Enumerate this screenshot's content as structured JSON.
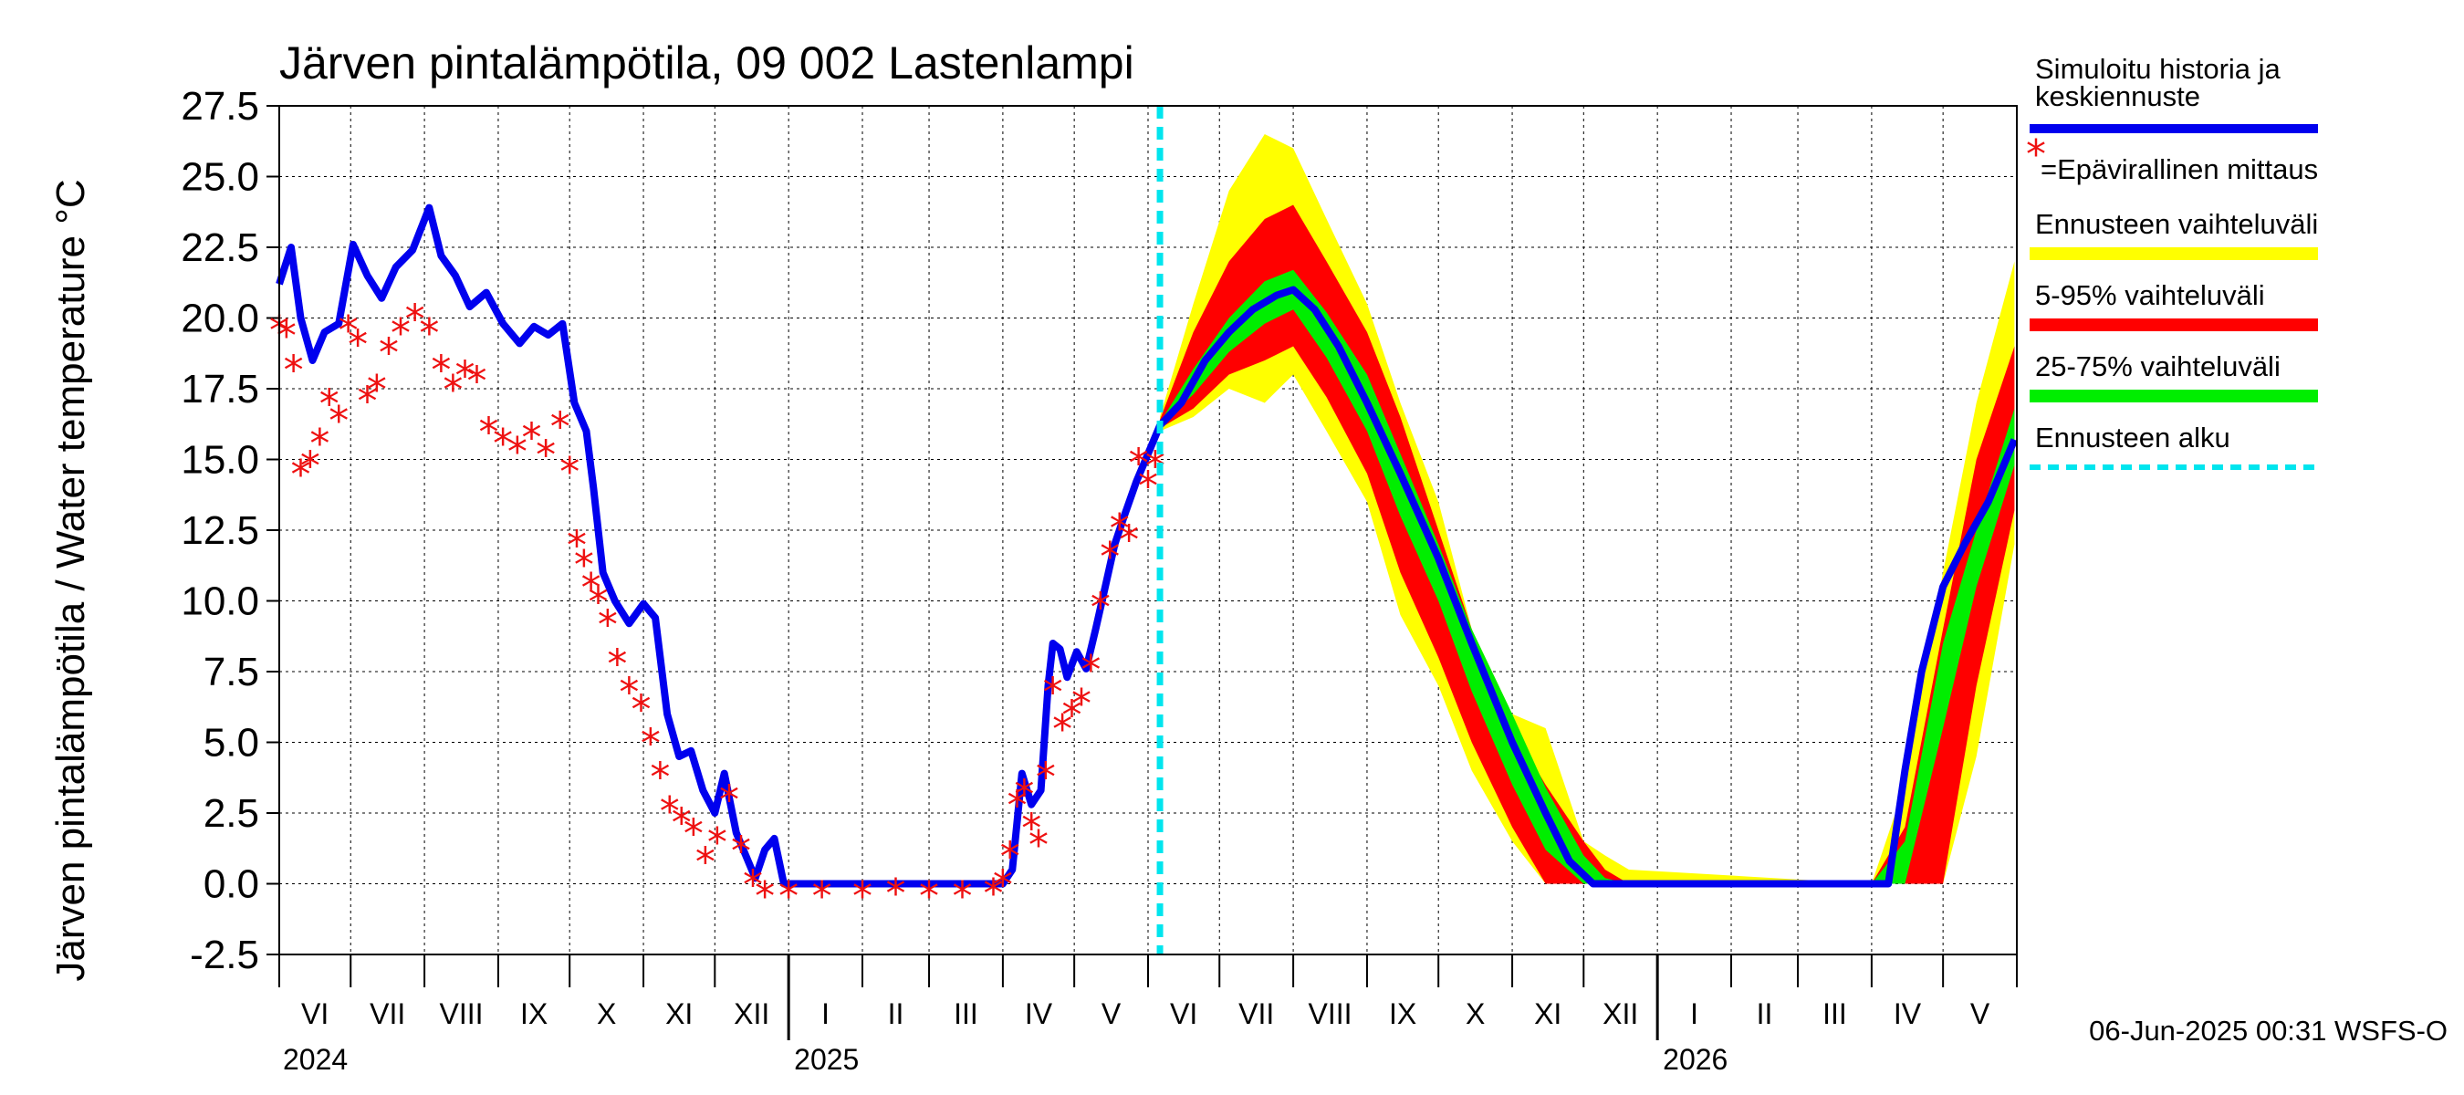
{
  "chart_data": {
    "type": "line",
    "title": "Järven pintalämpötila, 09 002 Lastenlampi",
    "ylabel": "Järven pintalämpötila / Water temperature °C",
    "ylim": [
      -2.5,
      27.5
    ],
    "yticks": [
      "27.5",
      "25.0",
      "22.5",
      "20.0",
      "17.5",
      "15.0",
      "12.5",
      "10.0",
      "7.5",
      "5.0",
      "2.5",
      "0.0",
      "-2.5"
    ],
    "x_axis": {
      "start": "2024-06-01",
      "end": "2026-05-31",
      "months": [
        "VI",
        "VII",
        "VIII",
        "IX",
        "X",
        "XI",
        "XII",
        "I",
        "II",
        "III",
        "IV",
        "V",
        "VI",
        "VII",
        "VIII",
        "IX",
        "X",
        "XI",
        "XII",
        "I",
        "II",
        "III",
        "IV",
        "V"
      ],
      "years": [
        "2024",
        "2025",
        "2026"
      ]
    },
    "forecast_start": "2025-06-06",
    "grid": true,
    "legend_position": "right",
    "legend": {
      "history": "Simuloitu historia ja keskiennuste",
      "observed": "=Epävirallinen mittaus",
      "range_total": "Ennusteen vaihteluväli",
      "range_5_95": "5-95% vaihteluväli",
      "range_25_75": "25-75% vaihteluväli",
      "forecast_start": "Ennusteen alku"
    },
    "colors": {
      "history": "#0000ee",
      "observed": "#ee1111",
      "range_total": "#ffff00",
      "range_5_95": "#ff0000",
      "range_25_75": "#00ee00",
      "forecast_start": "#00e5ee"
    },
    "series": [
      {
        "name": "Simuloitu historia ja keskiennuste",
        "points": [
          [
            "2024-06-01",
            21.2
          ],
          [
            "2024-06-06",
            22.5
          ],
          [
            "2024-06-10",
            20.0
          ],
          [
            "2024-06-15",
            18.5
          ],
          [
            "2024-06-20",
            19.5
          ],
          [
            "2024-06-26",
            19.8
          ],
          [
            "2024-07-02",
            22.6
          ],
          [
            "2024-07-08",
            21.5
          ],
          [
            "2024-07-14",
            20.7
          ],
          [
            "2024-07-20",
            21.8
          ],
          [
            "2024-07-27",
            22.4
          ],
          [
            "2024-08-03",
            23.9
          ],
          [
            "2024-08-08",
            22.2
          ],
          [
            "2024-08-14",
            21.5
          ],
          [
            "2024-08-20",
            20.4
          ],
          [
            "2024-08-27",
            20.9
          ],
          [
            "2024-09-03",
            19.8
          ],
          [
            "2024-09-10",
            19.1
          ],
          [
            "2024-09-16",
            19.7
          ],
          [
            "2024-09-22",
            19.4
          ],
          [
            "2024-09-28",
            19.8
          ],
          [
            "2024-10-03",
            17.0
          ],
          [
            "2024-10-08",
            16.0
          ],
          [
            "2024-10-11",
            14.0
          ],
          [
            "2024-10-15",
            11.0
          ],
          [
            "2024-10-20",
            10.0
          ],
          [
            "2024-10-26",
            9.2
          ],
          [
            "2024-11-01",
            9.9
          ],
          [
            "2024-11-06",
            9.4
          ],
          [
            "2024-11-11",
            6.0
          ],
          [
            "2024-11-16",
            4.5
          ],
          [
            "2024-11-21",
            4.7
          ],
          [
            "2024-11-26",
            3.3
          ],
          [
            "2024-12-01",
            2.5
          ],
          [
            "2024-12-05",
            3.9
          ],
          [
            "2024-12-10",
            1.8
          ],
          [
            "2024-12-14",
            1.0
          ],
          [
            "2024-12-18",
            0.2
          ],
          [
            "2024-12-22",
            1.2
          ],
          [
            "2024-12-26",
            1.6
          ],
          [
            "2024-12-30",
            0.0
          ],
          [
            "2025-01-15",
            0.0
          ],
          [
            "2025-02-15",
            0.0
          ],
          [
            "2025-03-15",
            0.0
          ],
          [
            "2025-04-01",
            0.0
          ],
          [
            "2025-04-05",
            0.5
          ],
          [
            "2025-04-09",
            3.9
          ],
          [
            "2025-04-13",
            2.8
          ],
          [
            "2025-04-17",
            3.3
          ],
          [
            "2025-04-20",
            7.0
          ],
          [
            "2025-04-22",
            8.5
          ],
          [
            "2025-04-25",
            8.3
          ],
          [
            "2025-04-28",
            7.3
          ],
          [
            "2025-05-02",
            8.2
          ],
          [
            "2025-05-06",
            7.6
          ],
          [
            "2025-05-10",
            9.0
          ],
          [
            "2025-05-14",
            10.5
          ],
          [
            "2025-05-18",
            12.0
          ],
          [
            "2025-05-22",
            13.0
          ],
          [
            "2025-05-27",
            14.2
          ],
          [
            "2025-06-01",
            15.2
          ],
          [
            "2025-06-06",
            16.2
          ],
          [
            "2025-06-15",
            17.0
          ],
          [
            "2025-06-25",
            18.5
          ],
          [
            "2025-07-05",
            19.5
          ],
          [
            "2025-07-15",
            20.3
          ],
          [
            "2025-07-25",
            20.8
          ],
          [
            "2025-08-01",
            21.0
          ],
          [
            "2025-08-10",
            20.3
          ],
          [
            "2025-08-20",
            19.0
          ],
          [
            "2025-09-01",
            17.0
          ],
          [
            "2025-09-15",
            14.5
          ],
          [
            "2025-10-01",
            11.5
          ],
          [
            "2025-10-15",
            8.5
          ],
          [
            "2025-11-01",
            5.0
          ],
          [
            "2025-11-15",
            2.5
          ],
          [
            "2025-11-25",
            0.8
          ],
          [
            "2025-12-05",
            0.0
          ],
          [
            "2026-01-01",
            0.0
          ],
          [
            "2026-02-01",
            0.0
          ],
          [
            "2026-03-01",
            0.0
          ],
          [
            "2026-04-01",
            0.0
          ],
          [
            "2026-04-08",
            0.0
          ],
          [
            "2026-04-15",
            4.0
          ],
          [
            "2026-04-22",
            7.5
          ],
          [
            "2026-05-01",
            10.5
          ],
          [
            "2026-05-10",
            12.0
          ],
          [
            "2026-05-20",
            13.5
          ],
          [
            "2026-05-31",
            15.7
          ]
        ]
      },
      {
        "name": "=Epävirallinen mittaus",
        "points": [
          [
            "2024-06-01",
            19.6
          ],
          [
            "2024-06-04",
            19.4
          ],
          [
            "2024-06-07",
            18.2
          ],
          [
            "2024-06-10",
            14.5
          ],
          [
            "2024-06-14",
            14.8
          ],
          [
            "2024-06-18",
            15.6
          ],
          [
            "2024-06-22",
            17.0
          ],
          [
            "2024-06-26",
            16.4
          ],
          [
            "2024-06-30",
            19.6
          ],
          [
            "2024-07-04",
            19.1
          ],
          [
            "2024-07-08",
            17.1
          ],
          [
            "2024-07-12",
            17.5
          ],
          [
            "2024-07-17",
            18.8
          ],
          [
            "2024-07-22",
            19.5
          ],
          [
            "2024-07-28",
            20.0
          ],
          [
            "2024-08-03",
            19.5
          ],
          [
            "2024-08-08",
            18.2
          ],
          [
            "2024-08-13",
            17.5
          ],
          [
            "2024-08-18",
            18.0
          ],
          [
            "2024-08-23",
            17.8
          ],
          [
            "2024-08-28",
            16.0
          ],
          [
            "2024-09-03",
            15.6
          ],
          [
            "2024-09-09",
            15.3
          ],
          [
            "2024-09-15",
            15.8
          ],
          [
            "2024-09-21",
            15.2
          ],
          [
            "2024-09-27",
            16.2
          ],
          [
            "2024-10-01",
            14.6
          ],
          [
            "2024-10-04",
            12.0
          ],
          [
            "2024-10-07",
            11.3
          ],
          [
            "2024-10-10",
            10.5
          ],
          [
            "2024-10-13",
            10.0
          ],
          [
            "2024-10-17",
            9.2
          ],
          [
            "2024-10-21",
            7.8
          ],
          [
            "2024-10-26",
            6.8
          ],
          [
            "2024-10-31",
            6.2
          ],
          [
            "2024-11-04",
            5.0
          ],
          [
            "2024-11-08",
            3.8
          ],
          [
            "2024-11-12",
            2.6
          ],
          [
            "2024-11-17",
            2.2
          ],
          [
            "2024-11-22",
            1.8
          ],
          [
            "2024-11-27",
            0.8
          ],
          [
            "2024-12-02",
            1.5
          ],
          [
            "2024-12-07",
            3.0
          ],
          [
            "2024-12-12",
            1.2
          ],
          [
            "2024-12-17",
            0.0
          ],
          [
            "2024-12-22",
            -0.4
          ],
          [
            "2025-01-01",
            -0.4
          ],
          [
            "2025-01-15",
            -0.4
          ],
          [
            "2025-02-01",
            -0.4
          ],
          [
            "2025-02-15",
            -0.3
          ],
          [
            "2025-03-01",
            -0.4
          ],
          [
            "2025-03-15",
            -0.4
          ],
          [
            "2025-03-28",
            -0.3
          ],
          [
            "2025-04-01",
            0.0
          ],
          [
            "2025-04-04",
            1.0
          ],
          [
            "2025-04-07",
            2.8
          ],
          [
            "2025-04-10",
            3.2
          ],
          [
            "2025-04-13",
            2.0
          ],
          [
            "2025-04-16",
            1.4
          ],
          [
            "2025-04-19",
            3.8
          ],
          [
            "2025-04-22",
            6.8
          ],
          [
            "2025-04-26",
            5.5
          ],
          [
            "2025-04-30",
            6.0
          ],
          [
            "2025-05-04",
            6.4
          ],
          [
            "2025-05-08",
            7.6
          ],
          [
            "2025-05-12",
            9.8
          ],
          [
            "2025-05-16",
            11.6
          ],
          [
            "2025-05-20",
            12.6
          ],
          [
            "2025-05-24",
            12.2
          ],
          [
            "2025-05-28",
            14.9
          ],
          [
            "2025-06-01",
            14.1
          ],
          [
            "2025-06-04",
            14.8
          ]
        ]
      },
      {
        "name": "Ennusteen vaihteluväli",
        "x": [
          "2025-06-06",
          "2025-06-20",
          "2025-07-05",
          "2025-07-20",
          "2025-08-01",
          "2025-08-15",
          "2025-09-01",
          "2025-09-15",
          "2025-10-01",
          "2025-10-15",
          "2025-11-01",
          "2025-11-15",
          "2025-12-01",
          "2025-12-10",
          "2025-12-20",
          "2026-04-01",
          "2026-04-15",
          "2026-05-01",
          "2026-05-15",
          "2026-05-31"
        ],
        "low": [
          16.0,
          16.5,
          17.5,
          17.0,
          18.0,
          16.0,
          13.5,
          9.5,
          7.0,
          4.0,
          1.5,
          0.0,
          0.0,
          0.0,
          0.0,
          0.0,
          0.0,
          0.0,
          4.5,
          12.0
        ],
        "high": [
          16.5,
          20.5,
          24.5,
          26.5,
          26.0,
          23.5,
          20.5,
          17.0,
          13.5,
          9.0,
          6.0,
          5.5,
          1.5,
          1.0,
          0.5,
          0.0,
          3.5,
          11.0,
          17.0,
          22.0
        ]
      },
      {
        "name": "5-95% vaihteluväli",
        "x": [
          "2025-06-06",
          "2025-06-20",
          "2025-07-05",
          "2025-07-20",
          "2025-08-01",
          "2025-08-15",
          "2025-09-01",
          "2025-09-15",
          "2025-10-01",
          "2025-10-15",
          "2025-11-01",
          "2025-11-15",
          "2025-12-01",
          "2025-12-10",
          "2025-12-20",
          "2026-04-01",
          "2026-04-15",
          "2026-05-01",
          "2026-05-15",
          "2026-05-31"
        ],
        "low": [
          16.1,
          16.8,
          18.0,
          18.5,
          19.0,
          17.2,
          14.5,
          11.0,
          8.0,
          5.0,
          2.0,
          0.0,
          0.0,
          0.0,
          0.0,
          0.0,
          0.0,
          0.0,
          7.0,
          13.2
        ],
        "high": [
          16.4,
          19.5,
          22.0,
          23.5,
          24.0,
          22.0,
          19.5,
          16.5,
          12.5,
          9.0,
          5.5,
          3.5,
          1.5,
          0.5,
          0.0,
          0.0,
          2.0,
          9.0,
          15.0,
          19.0
        ]
      },
      {
        "name": "25-75% vaihteluväli",
        "x": [
          "2025-06-06",
          "2025-06-20",
          "2025-07-05",
          "2025-07-20",
          "2025-08-01",
          "2025-08-15",
          "2025-09-01",
          "2025-09-15",
          "2025-10-01",
          "2025-10-15",
          "2025-11-01",
          "2025-11-15",
          "2025-12-01",
          "2025-12-10",
          "2025-12-20",
          "2026-04-01",
          "2026-04-15",
          "2026-05-01",
          "2026-05-15",
          "2026-05-31"
        ],
        "low": [
          16.2,
          17.3,
          18.8,
          19.8,
          20.3,
          18.6,
          16.0,
          13.0,
          10.0,
          6.8,
          3.5,
          1.2,
          0.0,
          0.0,
          0.0,
          0.0,
          0.0,
          5.5,
          10.5,
          14.8
        ],
        "high": [
          16.3,
          18.2,
          20.0,
          21.3,
          21.7,
          20.2,
          18.0,
          15.2,
          12.0,
          9.0,
          6.0,
          3.4,
          1.0,
          0.2,
          0.0,
          0.0,
          1.5,
          8.5,
          12.5,
          16.8
        ]
      }
    ],
    "footer": "06-Jun-2025 00:31 WSFS-O"
  }
}
